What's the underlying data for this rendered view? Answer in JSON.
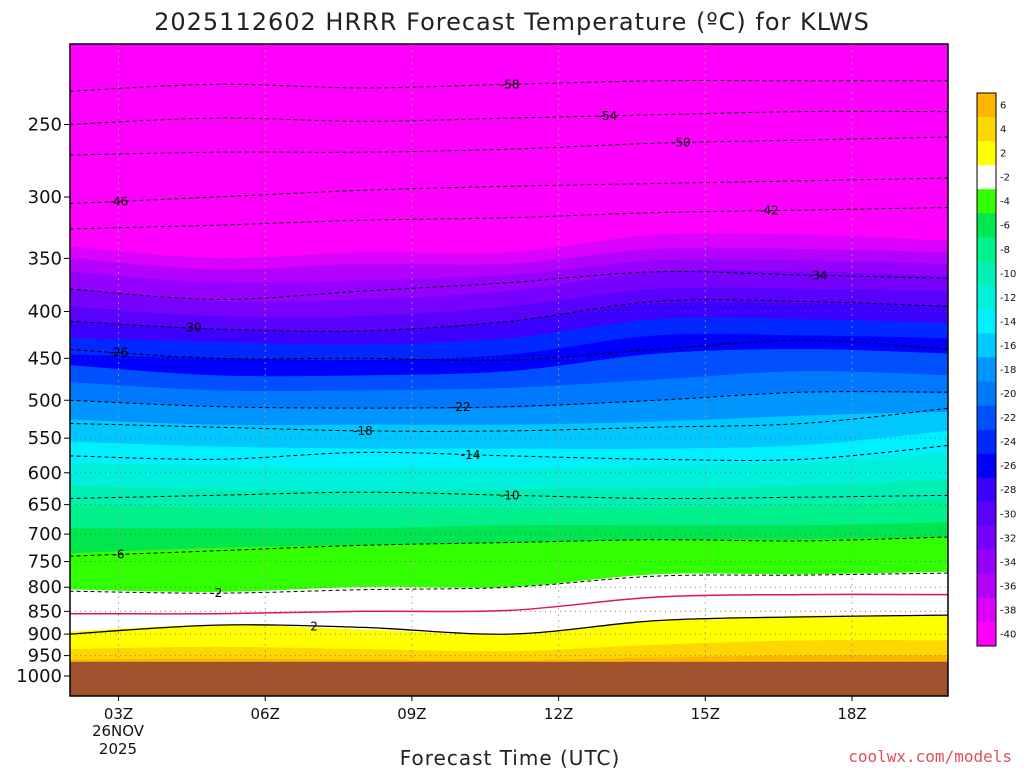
{
  "chart_data": {
    "type": "heatmap",
    "title": "2025112602 HRRR Forecast Temperature (ºC) for KLWS",
    "xlabel": "Forecast Time (UTC)",
    "ylabel": "",
    "x_ticks": [
      {
        "label": "03Z",
        "hour": 3
      },
      {
        "label": "06Z",
        "hour": 6
      },
      {
        "label": "09Z",
        "hour": 9
      },
      {
        "label": "12Z",
        "hour": 12
      },
      {
        "label": "15Z",
        "hour": 15
      },
      {
        "label": "18Z",
        "hour": 18
      }
    ],
    "x_sublabels": [
      "26NOV",
      "2025"
    ],
    "xlim": [
      2,
      20
    ],
    "y_ticks": [
      250,
      300,
      350,
      400,
      450,
      500,
      550,
      600,
      650,
      700,
      750,
      800,
      850,
      900,
      950,
      1000
    ],
    "ylim": [
      1000,
      200
    ],
    "y_scale": "log-pressure",
    "grid": true,
    "colorbar": {
      "labels": [
        6,
        4,
        2,
        -2,
        -4,
        -6,
        -8,
        -10,
        -12,
        -14,
        -16,
        -18,
        -20,
        -22,
        -24,
        -26,
        -28,
        -30,
        -32,
        -34,
        -36,
        -38,
        -40
      ],
      "colors": [
        "#ffb400",
        "#ffd700",
        "#ffff00",
        "#ffffff",
        "#32ff00",
        "#00e650",
        "#00f08c",
        "#00f0b4",
        "#00f0dc",
        "#00f0ff",
        "#00c8ff",
        "#0096ff",
        "#0078ff",
        "#0050ff",
        "#0028ff",
        "#0000ff",
        "#3c00ff",
        "#5a00ff",
        "#7800ff",
        "#9600ff",
        "#b400ff",
        "#dc00ff",
        "#ff00ff"
      ]
    },
    "bands": [
      {
        "color": "#ff00ff",
        "p": [
          [
            200,
            200,
            200,
            200,
            200,
            200,
            200
          ],
          [
            340,
            350,
            345,
            345,
            330,
            330,
            335
          ]
        ]
      },
      {
        "color": "#dc00ff",
        "p": [
          [
            340,
            350,
            345,
            345,
            330,
            330,
            335
          ],
          [
            350,
            360,
            355,
            355,
            342,
            342,
            345
          ]
        ]
      },
      {
        "color": "#b400ff",
        "p": [
          [
            350,
            360,
            355,
            355,
            342,
            342,
            345
          ],
          [
            362,
            372,
            370,
            365,
            352,
            352,
            355
          ]
        ]
      },
      {
        "color": "#9600ff",
        "p": [
          [
            362,
            372,
            370,
            365,
            352,
            352,
            355
          ],
          [
            378,
            390,
            388,
            380,
            362,
            362,
            366
          ]
        ]
      },
      {
        "color": "#7800ff",
        "p": [
          [
            378,
            390,
            388,
            380,
            362,
            362,
            366
          ],
          [
            395,
            405,
            405,
            395,
            378,
            378,
            380
          ]
        ]
      },
      {
        "color": "#5a00ff",
        "p": [
          [
            395,
            405,
            405,
            395,
            378,
            378,
            380
          ],
          [
            410,
            418,
            420,
            410,
            392,
            392,
            395
          ]
        ]
      },
      {
        "color": "#3c00ff",
        "p": [
          [
            410,
            418,
            420,
            410,
            392,
            392,
            395
          ],
          [
            428,
            432,
            435,
            428,
            408,
            408,
            412
          ]
        ]
      },
      {
        "color": "#0028ff",
        "p": [
          [
            428,
            432,
            435,
            428,
            408,
            408,
            412
          ],
          [
            446,
            450,
            452,
            446,
            425,
            425,
            428
          ]
        ]
      },
      {
        "color": "#0000ff",
        "p": [
          [
            446,
            450,
            452,
            446,
            425,
            425,
            428
          ],
          [
            458,
            470,
            470,
            465,
            445,
            440,
            445
          ]
        ]
      },
      {
        "color": "#0050ff",
        "p": [
          [
            458,
            470,
            470,
            465,
            445,
            440,
            445
          ],
          [
            478,
            488,
            488,
            485,
            475,
            465,
            470
          ]
        ]
      },
      {
        "color": "#0078ff",
        "p": [
          [
            478,
            488,
            488,
            485,
            475,
            465,
            470
          ],
          [
            500,
            508,
            510,
            510,
            500,
            490,
            492
          ]
        ]
      },
      {
        "color": "#0096ff",
        "p": [
          [
            500,
            508,
            510,
            510,
            500,
            490,
            492
          ],
          [
            525,
            532,
            532,
            532,
            528,
            520,
            515
          ]
        ]
      },
      {
        "color": "#00c8ff",
        "p": [
          [
            525,
            532,
            532,
            532,
            528,
            520,
            515
          ],
          [
            555,
            562,
            565,
            565,
            565,
            560,
            540
          ]
        ]
      },
      {
        "color": "#00f0ff",
        "p": [
          [
            555,
            562,
            565,
            565,
            565,
            560,
            540
          ],
          [
            585,
            590,
            592,
            592,
            590,
            585,
            570
          ]
        ]
      },
      {
        "color": "#00f0dc",
        "p": [
          [
            585,
            590,
            592,
            592,
            590,
            585,
            570
          ],
          [
            620,
            625,
            628,
            625,
            625,
            620,
            610
          ]
        ]
      },
      {
        "color": "#00f0b4",
        "p": [
          [
            620,
            625,
            628,
            625,
            625,
            620,
            610
          ],
          [
            650,
            655,
            655,
            655,
            655,
            650,
            645
          ]
        ]
      },
      {
        "color": "#00f08c",
        "p": [
          [
            650,
            655,
            655,
            655,
            655,
            650,
            645
          ],
          [
            690,
            690,
            690,
            685,
            685,
            685,
            680
          ]
        ]
      },
      {
        "color": "#00e650",
        "p": [
          [
            690,
            690,
            690,
            685,
            685,
            685,
            680
          ],
          [
            735,
            725,
            720,
            715,
            710,
            710,
            705
          ]
        ]
      },
      {
        "color": "#32ff00",
        "p": [
          [
            735,
            725,
            720,
            715,
            710,
            710,
            705
          ],
          [
            805,
            810,
            800,
            800,
            775,
            775,
            770
          ]
        ]
      },
      {
        "color": "#ffffff",
        "p": [
          [
            805,
            810,
            800,
            800,
            775,
            775,
            770
          ],
          [
            895,
            880,
            890,
            900,
            870,
            860,
            860
          ]
        ]
      },
      {
        "color": "#ffff00",
        "p": [
          [
            895,
            880,
            890,
            900,
            870,
            860,
            860
          ],
          [
            935,
            930,
            935,
            940,
            925,
            915,
            915
          ]
        ]
      },
      {
        "color": "#ffd700",
        "p": [
          [
            935,
            930,
            935,
            940,
            925,
            915,
            915
          ],
          [
            960,
            958,
            960,
            962,
            955,
            950,
            950
          ]
        ]
      },
      {
        "color": "#ffb400",
        "p": [
          [
            960,
            958,
            960,
            962,
            955,
            950,
            950
          ],
          [
            1050,
            1050,
            1050,
            1050,
            1050,
            1050,
            1050
          ]
        ]
      }
    ],
    "contours": [
      {
        "label": "-58",
        "p": [
          230,
          226,
          228,
          226,
          224,
          224,
          224
        ],
        "label_hour": 11
      },
      {
        "label": "-54",
        "p": [
          250,
          246,
          248,
          246,
          244,
          242,
          242
        ],
        "label_hour": 13
      },
      {
        "label": "-50",
        "p": [
          270,
          268,
          268,
          266,
          262,
          260,
          258
        ],
        "label_hour": 14.5
      },
      {
        "label": "-46",
        "p": [
          305,
          300,
          295,
          292,
          290,
          288,
          286
        ],
        "label_hour": 3
      },
      {
        "label": "-42",
        "p": [
          325,
          322,
          318,
          316,
          312,
          310,
          308
        ],
        "label_hour": 16.3
      },
      {
        "label": "-34",
        "p": [
          378,
          388,
          380,
          372,
          362,
          365,
          368
        ],
        "label_hour": 17.3
      },
      {
        "label": "-30",
        "p": [
          410,
          418,
          420,
          410,
          390,
          390,
          395
        ],
        "label_hour": 4.5
      },
      {
        "label": "-26",
        "p": [
          440,
          450,
          450,
          452,
          440,
          430,
          440
        ],
        "label_hour": 3
      },
      {
        "label": "-22",
        "p": [
          500,
          508,
          510,
          508,
          500,
          490,
          490
        ],
        "label_hour": 10
      },
      {
        "label": "-18",
        "p": [
          530,
          535,
          540,
          540,
          535,
          530,
          510
        ],
        "label_hour": 8
      },
      {
        "label": "-14",
        "p": [
          575,
          580,
          570,
          575,
          580,
          580,
          560
        ],
        "label_hour": 10.2
      },
      {
        "label": "-10",
        "p": [
          640,
          635,
          630,
          635,
          640,
          638,
          635
        ],
        "label_hour": 11
      },
      {
        "label": "-6",
        "p": [
          740,
          730,
          720,
          715,
          710,
          712,
          705
        ],
        "label_hour": 3
      },
      {
        "label": "-2",
        "p": [
          808,
          812,
          805,
          800,
          778,
          776,
          772
        ],
        "label_hour": 5
      },
      {
        "label": "2",
        "p": [
          900,
          880,
          885,
          900,
          870,
          862,
          858
        ],
        "label_hour": 7
      }
    ],
    "freezing_line": {
      "p": [
        855,
        855,
        850,
        848,
        820,
        815,
        815
      ]
    },
    "ground_pressure": 965
  },
  "credit": "coolwx.com/models"
}
